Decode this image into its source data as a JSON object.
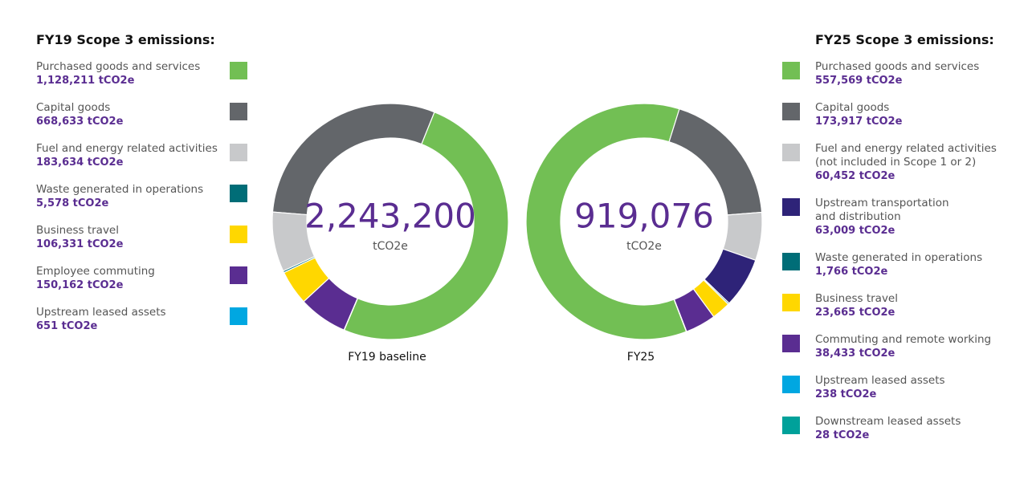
{
  "chart_data": [
    {
      "type": "donut",
      "title": "FY19 Scope 3 emissions:",
      "categories": [
        "Purchased goods and services",
        "Capital goods",
        "Fuel and energy related activities",
        "Waste generated in operations",
        "Business travel",
        "Employee commuting",
        "Upstream leased assets"
      ],
      "values": [
        1128211,
        668633,
        183634,
        5578,
        106331,
        150162,
        651
      ],
      "value_labels": [
        "1,128,211 tCO2e",
        "668,633 tCO2e",
        "183,634 tCO2e",
        "5,578 tCO2e",
        "106,331 tCO2e",
        "150,162 tCO2e",
        "651 tCO2e"
      ],
      "colors": [
        "#72bf54",
        "#63666a",
        "#c8c9cb",
        "#006d77",
        "#ffd700",
        "#5a2d91",
        "#00a7e1"
      ],
      "center_label": "2,243,200",
      "center_unit": "tCO2e",
      "caption": "FY19 baseline"
    },
    {
      "type": "donut",
      "title": "FY25 Scope 3 emissions:",
      "categories": [
        "Purchased goods and services",
        "Capital goods",
        "Fuel and energy related activities\n(not included in Scope 1 or 2)",
        "Upstream transportation\nand distribution",
        "Waste generated in operations",
        "Business travel",
        "Commuting and remote working",
        "Upstream leased assets",
        "Downstream leased assets"
      ],
      "values": [
        557569,
        173917,
        60452,
        63009,
        1766,
        23665,
        38433,
        238,
        28
      ],
      "value_labels": [
        "557,569 tCO2e",
        "173,917 tCO2e",
        "60,452 tCO2e",
        "63,009 tCO2e",
        "1,766 tCO2e",
        "23,665 tCO2e",
        "38,433 tCO2e",
        "238 tCO2e",
        "28 tCO2e"
      ],
      "colors": [
        "#72bf54",
        "#63666a",
        "#c8c9cb",
        "#2e2378",
        "#006d77",
        "#ffd700",
        "#5a2d91",
        "#00a7e1",
        "#00a19a"
      ],
      "center_label": "919,076",
      "center_unit": "tCO2e",
      "caption": "FY25"
    }
  ]
}
